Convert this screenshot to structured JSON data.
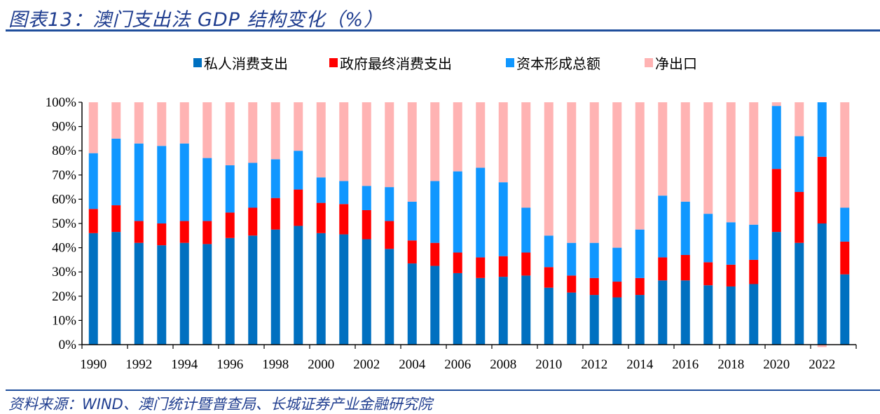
{
  "title": "图表13：澳门支出法 GDP 结构变化（%）",
  "source": "资料来源：WIND、澳门统计暨普查局、长城证券产业金融研究院",
  "chart_data": {
    "type": "stacked-bar",
    "title": "图表13：澳门支出法 GDP 结构变化（%）",
    "xlabel": "",
    "ylabel": "",
    "ylim": [
      0,
      100
    ],
    "yticks": [
      "0%",
      "10%",
      "20%",
      "30%",
      "40%",
      "50%",
      "60%",
      "70%",
      "80%",
      "90%",
      "100%"
    ],
    "grid": false,
    "legend_position": "top",
    "categories": [
      1990,
      1991,
      1992,
      1993,
      1994,
      1995,
      1996,
      1997,
      1998,
      1999,
      2000,
      2001,
      2002,
      2003,
      2004,
      2005,
      2006,
      2007,
      2008,
      2009,
      2010,
      2011,
      2012,
      2013,
      2014,
      2015,
      2016,
      2017,
      2018,
      2019,
      2020,
      2021,
      2022,
      2023
    ],
    "xtick_labels": [
      "1990",
      "1992",
      "1994",
      "1996",
      "1998",
      "2000",
      "2002",
      "2004",
      "2006",
      "2008",
      "2010",
      "2012",
      "2014",
      "2016",
      "2018",
      "2020",
      "2022"
    ],
    "series": [
      {
        "name": "私人消费支出",
        "color": "#0070c0",
        "values": [
          46,
          46.5,
          42,
          41,
          42,
          41.5,
          44,
          45,
          47.5,
          49,
          46,
          45.5,
          43.5,
          39.5,
          33.5,
          32.5,
          29.5,
          27.5,
          28,
          28.5,
          23.5,
          21.5,
          20.5,
          19.5,
          20.5,
          26.5,
          26.5,
          24.5,
          24,
          25,
          46.5,
          42,
          50,
          29
        ]
      },
      {
        "name": "政府最终消费支出",
        "color": "#ff0000",
        "values": [
          10,
          11,
          9,
          9,
          9,
          9.5,
          10.5,
          11.5,
          13,
          15,
          12.5,
          12.5,
          12,
          11.5,
          9.5,
          9.5,
          8.5,
          8.5,
          8.5,
          9.5,
          8.5,
          7,
          7,
          6.5,
          7,
          9.5,
          10.5,
          9.5,
          9,
          10,
          26,
          21,
          27.5,
          13.5
        ]
      },
      {
        "name": "资本形成总额",
        "color": "#1097ff",
        "values": [
          23,
          27.5,
          32,
          32,
          32,
          26,
          19.5,
          18.5,
          16,
          16,
          10.5,
          9.5,
          10,
          14,
          16,
          25.5,
          33.5,
          37,
          30.5,
          18.5,
          13,
          13.5,
          14.5,
          14,
          20,
          25.5,
          22,
          20,
          17.5,
          14.5,
          26,
          23,
          23.5,
          14
        ]
      },
      {
        "name": "净出口",
        "color": "#ffb3b3",
        "values": [
          21,
          15,
          17,
          18,
          17,
          23,
          26,
          25,
          23.5,
          20,
          31,
          32.5,
          34.5,
          35,
          41,
          32.5,
          28.5,
          27,
          33,
          43.5,
          55,
          58,
          58,
          60,
          52.5,
          38.5,
          41,
          46,
          49.5,
          50.5,
          1.5,
          14,
          -1,
          43.5
        ]
      }
    ]
  }
}
